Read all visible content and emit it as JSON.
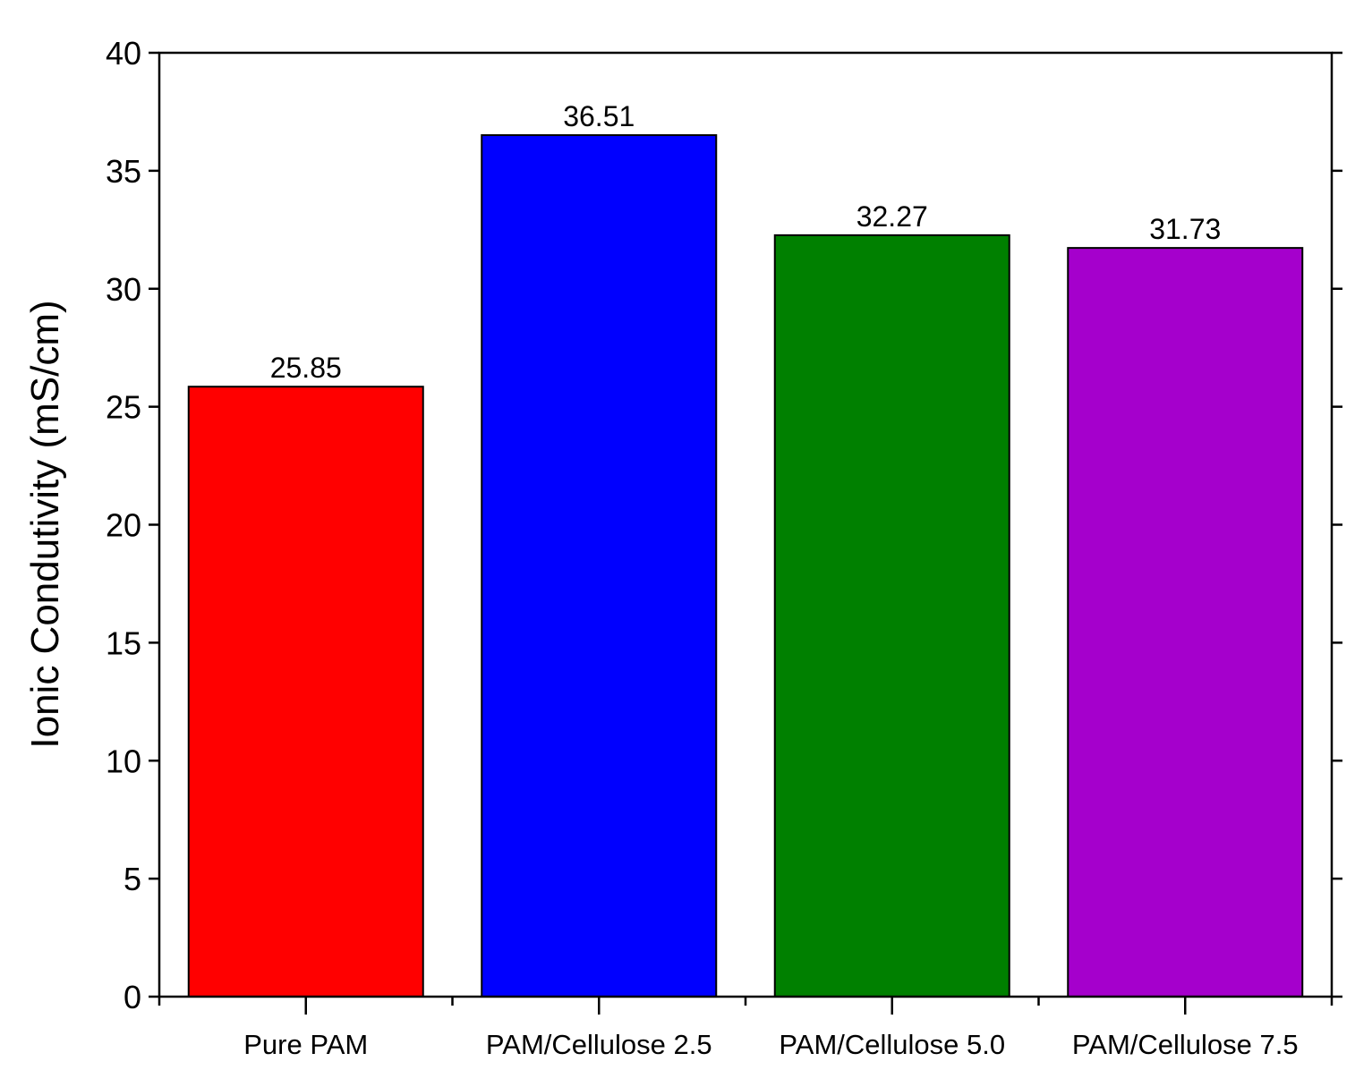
{
  "chart_data": {
    "type": "bar",
    "y_label": "Ionic Condutivity (mS/cm)",
    "categories": [
      "Pure PAM",
      "PAM/Cellulose 2.5",
      "PAM/Cellulose 5.0",
      "PAM/Cellulose 7.5"
    ],
    "values": [
      25.85,
      36.51,
      32.27,
      31.73
    ],
    "colors": [
      "#ff0000",
      "#0000ff",
      "#008000",
      "#a500cc"
    ],
    "ylim": [
      0,
      40
    ],
    "yticks": [
      0,
      5,
      10,
      15,
      20,
      25,
      30,
      35,
      40
    ],
    "grid": false
  }
}
